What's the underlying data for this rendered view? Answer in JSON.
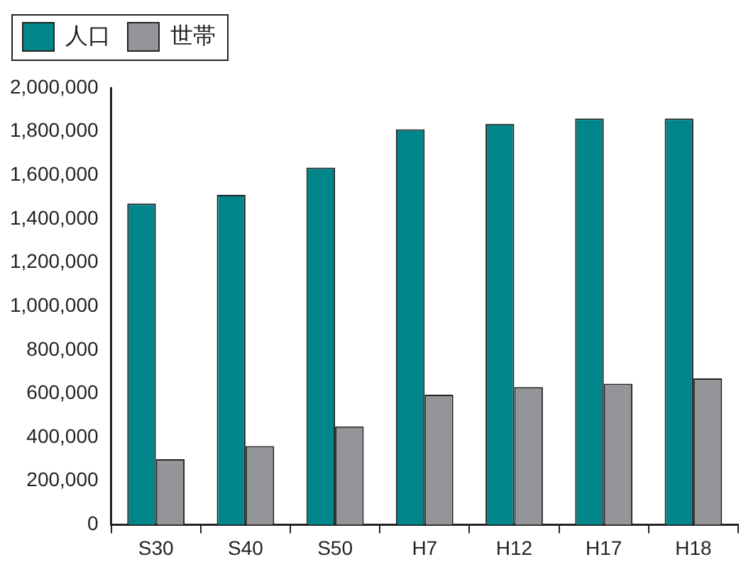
{
  "chart_data": {
    "type": "bar",
    "categories": [
      "S30",
      "S40",
      "S50",
      "H7",
      "H12",
      "H17",
      "H18"
    ],
    "series": [
      {
        "name": "人口",
        "color": "#00868a",
        "values": [
          1470000,
          1510000,
          1635000,
          1810000,
          1835000,
          1860000,
          1860000
        ]
      },
      {
        "name": "世帯",
        "color": "#949599",
        "values": [
          300000,
          360000,
          450000,
          595000,
          630000,
          645000,
          670000
        ]
      }
    ],
    "ylim": [
      0,
      2000000
    ],
    "yticks": [
      0,
      {
        "value": 200000,
        "label": "200,000"
      },
      {
        "value": 400000,
        "label": "400,000"
      },
      {
        "value": 600000,
        "label": "600,000"
      },
      {
        "value": 800000,
        "label": "800,000"
      },
      {
        "value": 1000000,
        "label": "1,000,000"
      },
      {
        "value": 1200000,
        "label": "1,200,000"
      },
      {
        "value": 1400000,
        "label": "1,400,000"
      },
      {
        "value": 1600000,
        "label": "1,600,000"
      },
      {
        "value": 1800000,
        "label": "1,800,000"
      },
      {
        "value": 2000000,
        "label": "2,000,000"
      }
    ],
    "grid": false,
    "legend": "top left"
  }
}
